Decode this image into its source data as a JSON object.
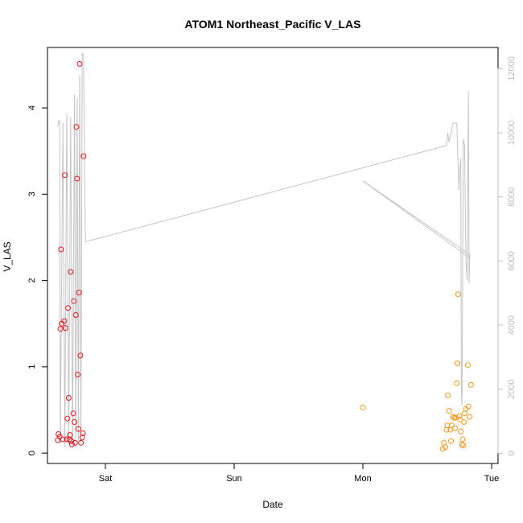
{
  "chart_data": {
    "type": "scatter",
    "title": "ATOM1 Northeast_Pacific V_LAS",
    "xlabel": "Date",
    "ylabel": "V_LAS",
    "x_ticks": [
      {
        "value": 0,
        "label": "Sat"
      },
      {
        "value": 1,
        "label": "Sun"
      },
      {
        "value": 2,
        "label": "Mon"
      },
      {
        "value": 3,
        "label": "Tue"
      }
    ],
    "xlim": [
      -0.45,
      3.05
    ],
    "ylim": [
      -0.12,
      4.7
    ],
    "y_ticks": [
      {
        "value": 0,
        "label": "0"
      },
      {
        "value": 1,
        "label": "1"
      },
      {
        "value": 2,
        "label": "2"
      },
      {
        "value": 3,
        "label": "3"
      },
      {
        "value": 4,
        "label": "4"
      }
    ],
    "y2lim": [
      -315,
      12660
    ],
    "y2_ticks": [
      {
        "value": 0,
        "label": "0"
      },
      {
        "value": 2000,
        "label": "2000"
      },
      {
        "value": 4000,
        "label": "4000"
      },
      {
        "value": 6000,
        "label": "6000"
      },
      {
        "value": 8000,
        "label": "8000"
      },
      {
        "value": 10000,
        "label": "10000"
      },
      {
        "value": 12000,
        "label": "12000"
      }
    ],
    "colors": {
      "series1": "#e8141c",
      "series2": "#f7961d",
      "line": "#c4c4c4"
    },
    "series": [
      {
        "points": [
          {
            "x": -0.37,
            "y": 0.15
          },
          {
            "x": -0.365,
            "y": 0.22
          },
          {
            "x": -0.355,
            "y": 0.19
          },
          {
            "x": -0.35,
            "y": 1.44
          },
          {
            "x": -0.345,
            "y": 2.36
          },
          {
            "x": -0.34,
            "y": 1.5
          },
          {
            "x": -0.33,
            "y": 0.16
          },
          {
            "x": -0.32,
            "y": 1.53
          },
          {
            "x": -0.315,
            "y": 3.22
          },
          {
            "x": -0.31,
            "y": 1.45
          },
          {
            "x": -0.3,
            "y": 0.16
          },
          {
            "x": -0.295,
            "y": 0.4
          },
          {
            "x": -0.29,
            "y": 1.68
          },
          {
            "x": -0.285,
            "y": 0.64
          },
          {
            "x": -0.28,
            "y": 0.16
          },
          {
            "x": -0.275,
            "y": 0.21
          },
          {
            "x": -0.27,
            "y": 2.1
          },
          {
            "x": -0.265,
            "y": 0.14
          },
          {
            "x": -0.26,
            "y": 0.1
          },
          {
            "x": -0.25,
            "y": 0.46
          },
          {
            "x": -0.245,
            "y": 1.76
          },
          {
            "x": -0.24,
            "y": 0.36
          },
          {
            "x": -0.235,
            "y": 0.12
          },
          {
            "x": -0.23,
            "y": 1.6
          },
          {
            "x": -0.225,
            "y": 3.78
          },
          {
            "x": -0.22,
            "y": 3.18
          },
          {
            "x": -0.215,
            "y": 0.91
          },
          {
            "x": -0.21,
            "y": 0.28
          },
          {
            "x": -0.205,
            "y": 1.86
          },
          {
            "x": -0.2,
            "y": 4.51
          },
          {
            "x": -0.195,
            "y": 1.13
          },
          {
            "x": -0.19,
            "y": 0.12
          },
          {
            "x": -0.18,
            "y": 0.18
          },
          {
            "x": -0.175,
            "y": 0.23
          },
          {
            "x": -0.17,
            "y": 3.44
          }
        ]
      },
      {
        "points": [
          {
            "x": 2.0,
            "y": 0.53
          },
          {
            "x": 2.62,
            "y": 0.05
          },
          {
            "x": 2.63,
            "y": 0.12
          },
          {
            "x": 2.64,
            "y": 0.07
          },
          {
            "x": 2.65,
            "y": 0.27
          },
          {
            "x": 2.655,
            "y": 0.32
          },
          {
            "x": 2.66,
            "y": 0.67
          },
          {
            "x": 2.67,
            "y": 0.49
          },
          {
            "x": 2.68,
            "y": 0.27
          },
          {
            "x": 2.685,
            "y": 0.14
          },
          {
            "x": 2.69,
            "y": 0.32
          },
          {
            "x": 2.7,
            "y": 0.42
          },
          {
            "x": 2.71,
            "y": 0.41
          },
          {
            "x": 2.715,
            "y": 0.29
          },
          {
            "x": 2.72,
            "y": 0.41
          },
          {
            "x": 2.73,
            "y": 0.81
          },
          {
            "x": 2.735,
            "y": 1.04
          },
          {
            "x": 2.74,
            "y": 1.84
          },
          {
            "x": 2.75,
            "y": 0.43
          },
          {
            "x": 2.755,
            "y": 0.39
          },
          {
            "x": 2.76,
            "y": 0.25
          },
          {
            "x": 2.77,
            "y": 0.1
          },
          {
            "x": 2.775,
            "y": 0.16
          },
          {
            "x": 2.78,
            "y": 0.09
          },
          {
            "x": 2.785,
            "y": 0.36
          },
          {
            "x": 2.79,
            "y": 0.46
          },
          {
            "x": 2.8,
            "y": 0.51
          },
          {
            "x": 2.815,
            "y": 1.02
          },
          {
            "x": 2.82,
            "y": 0.54
          },
          {
            "x": 2.83,
            "y": 0.42
          },
          {
            "x": 2.84,
            "y": 0.79
          }
        ]
      }
    ],
    "line_series": {
      "axis": "right",
      "points": [
        {
          "x": -0.37,
          "y": 10200
        },
        {
          "x": -0.36,
          "y": 10400
        },
        {
          "x": -0.355,
          "y": 10300
        },
        {
          "x": -0.35,
          "y": 300
        },
        {
          "x": -0.33,
          "y": 10300
        },
        {
          "x": -0.315,
          "y": 200
        },
        {
          "x": -0.3,
          "y": 10600
        },
        {
          "x": -0.285,
          "y": 300
        },
        {
          "x": -0.27,
          "y": 10500
        },
        {
          "x": -0.255,
          "y": 200
        },
        {
          "x": -0.24,
          "y": 11200
        },
        {
          "x": -0.23,
          "y": 300
        },
        {
          "x": -0.22,
          "y": 11100
        },
        {
          "x": -0.21,
          "y": 400
        },
        {
          "x": -0.2,
          "y": 11800
        },
        {
          "x": -0.19,
          "y": 300
        },
        {
          "x": -0.18,
          "y": 12500
        },
        {
          "x": -0.17,
          "y": 12400
        },
        {
          "x": -0.155,
          "y": 6600
        },
        {
          "x": 2.65,
          "y": 9600
        },
        {
          "x": 2.66,
          "y": 10000
        },
        {
          "x": 2.67,
          "y": 9700
        },
        {
          "x": 2.7,
          "y": 10300
        },
        {
          "x": 2.73,
          "y": 10300
        },
        {
          "x": 2.745,
          "y": 8200
        },
        {
          "x": 2.75,
          "y": 8700
        },
        {
          "x": 2.76,
          "y": 9200
        },
        {
          "x": 2.765,
          "y": 2000
        },
        {
          "x": 2.77,
          "y": 1500
        },
        {
          "x": 2.78,
          "y": 9800
        },
        {
          "x": 2.785,
          "y": 9700
        },
        {
          "x": 2.79,
          "y": 9600
        },
        {
          "x": 2.8,
          "y": 6000
        },
        {
          "x": 2.81,
          "y": 5400
        },
        {
          "x": 2.82,
          "y": 11300
        },
        {
          "x": 2.825,
          "y": 5300
        },
        {
          "x": 2.83,
          "y": 6200
        },
        {
          "x": 2.0,
          "y": 8500
        },
        {
          "x": 2.83,
          "y": 6100
        }
      ]
    }
  }
}
